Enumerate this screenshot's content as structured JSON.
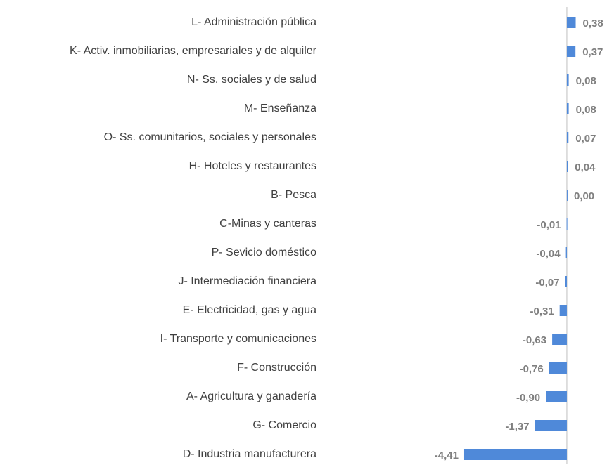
{
  "chart_data": {
    "type": "hbar",
    "categories": [
      "L- Administración pública",
      "K- Activ. inmobiliarias, empresariales y de alquiler",
      "N- Ss. sociales y de salud",
      "M- Enseñanza",
      "O- Ss. comunitarios, sociales y personales",
      "H- Hoteles y restaurantes",
      "B- Pesca",
      "C-Minas y canteras",
      "P- Sevicio doméstico",
      "J- Intermediación financiera",
      "E- Electricidad, gas y agua",
      "I- Transporte y comunicaciones",
      "F- Construcción",
      "A- Agricultura y ganadería",
      "G- Comercio",
      "D- Industria manufacturera"
    ],
    "values": [
      0.38,
      0.37,
      0.08,
      0.08,
      0.07,
      0.04,
      0.0,
      -0.01,
      -0.04,
      -0.07,
      -0.31,
      -0.63,
      -0.76,
      -0.9,
      -1.37,
      -4.41
    ],
    "value_labels": [
      "0,38",
      "0,37",
      "0,08",
      "0,08",
      "0,07",
      "0,04",
      "0,00",
      "-0,01",
      "-0,04",
      "-0,07",
      "-0,31",
      "-0,63",
      "-0,76",
      "-0,90",
      "-1,37",
      "-4,41"
    ],
    "color": "#4f89d9",
    "xlim": [
      -4.5,
      0.5
    ]
  }
}
